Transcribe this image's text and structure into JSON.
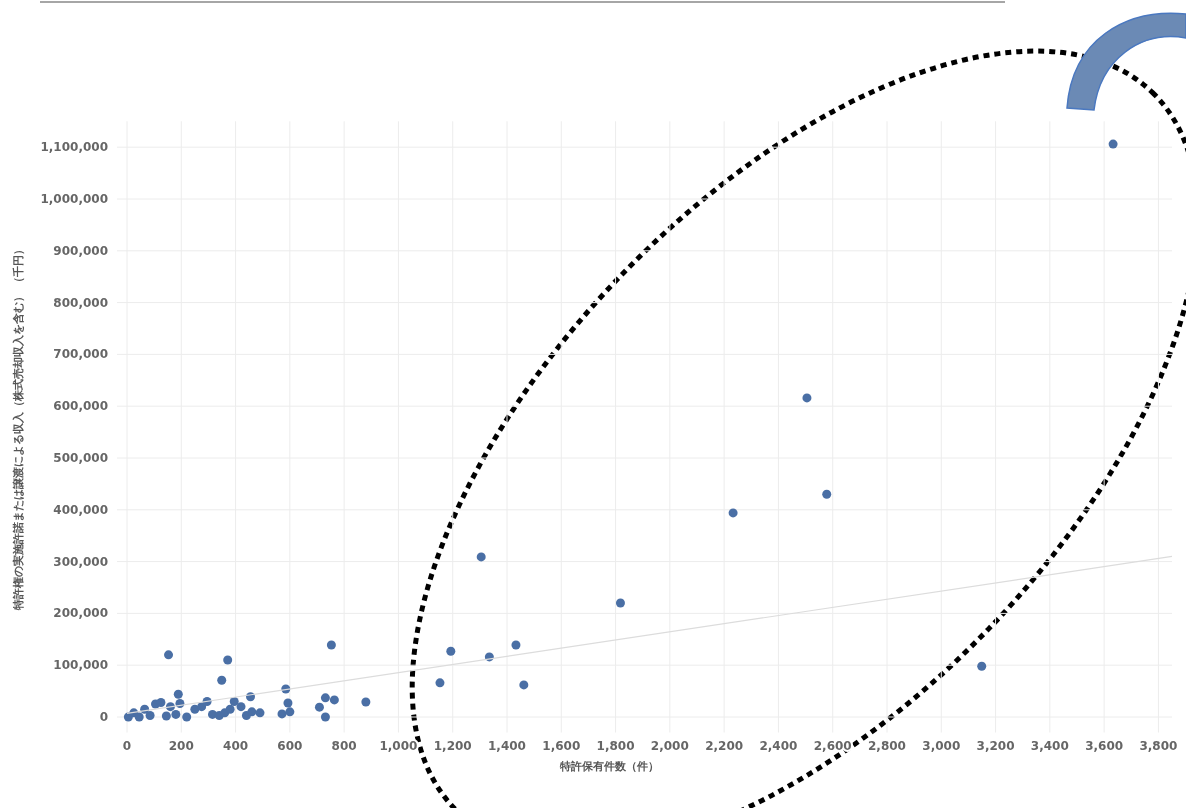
{
  "chart_data": {
    "type": "scatter",
    "xlabel": "特許保有件数（件）",
    "ylabel": "特許権の実施許諾または譲渡による収入（株式売却収入を含む） （千円）",
    "xlim": [
      0,
      3850
    ],
    "ylim": [
      -30000,
      1150000
    ],
    "xticks": [
      0,
      200,
      400,
      600,
      800,
      {
        "value": 1000,
        "label": "1,000"
      },
      {
        "value": 1200,
        "label": "1,200"
      },
      {
        "value": 1400,
        "label": "1,400"
      },
      {
        "value": 1600,
        "label": "1,600"
      },
      {
        "value": 1800,
        "label": "1,800"
      },
      {
        "value": 2000,
        "label": "2,000"
      },
      {
        "value": 2200,
        "label": "2,200"
      },
      {
        "value": 2400,
        "label": "2,400"
      },
      {
        "value": 2600,
        "label": "2,600"
      },
      {
        "value": 2800,
        "label": "2,800"
      },
      {
        "value": 3000,
        "label": "3,000"
      },
      {
        "value": 3200,
        "label": "3,200"
      },
      {
        "value": 3400,
        "label": "3,400"
      },
      {
        "value": 3600,
        "label": "3,600"
      },
      {
        "value": 3800,
        "label": "3,800"
      }
    ],
    "yticks": [
      0,
      {
        "value": 100000,
        "label": "100,000"
      },
      {
        "value": 200000,
        "label": "200,000"
      },
      {
        "value": 300000,
        "label": "300,000"
      },
      {
        "value": 400000,
        "label": "400,000"
      },
      {
        "value": 500000,
        "label": "500,000"
      },
      {
        "value": 600000,
        "label": "600,000"
      },
      {
        "value": 700000,
        "label": "700,000"
      },
      {
        "value": 800000,
        "label": "800,000"
      },
      {
        "value": 900000,
        "label": "900,000"
      },
      {
        "value": 1000000,
        "label": "1,000,000"
      },
      {
        "value": 1100000,
        "label": "1,100,000"
      }
    ],
    "grid": true,
    "marker": "circle",
    "series": [
      {
        "color": "#4a6fa5",
        "x": [
          5,
          25,
          45,
          65,
          85,
          105,
          125,
          145,
          160,
          180,
          195,
          220,
          250,
          275,
          295,
          315,
          340,
          360,
          380,
          395,
          420,
          440,
          460,
          490,
          153,
          189,
          349,
          371,
          455,
          571,
          585,
          593,
          600,
          709,
          731,
          731,
          753,
          764,
          880,
          1153,
          1193,
          1305,
          1335,
          1433,
          1462,
          1818,
          2233,
          2505,
          2578,
          3149,
          3633
        ],
        "values": [
          0,
          8000,
          0,
          15000,
          3000,
          25000,
          28000,
          2000,
          20000,
          5000,
          26000,
          0,
          15000,
          20000,
          30000,
          5000,
          3000,
          8000,
          15000,
          30000,
          20000,
          3000,
          10000,
          8000,
          120000,
          44000,
          71000,
          110000,
          39000,
          6000,
          54000,
          27000,
          10000,
          19000,
          37000,
          0,
          139000,
          33000,
          29000,
          66000,
          127000,
          309000,
          116000,
          139000,
          62000,
          220000,
          394000,
          616000,
          430000,
          98000,
          1106000
        ]
      },
      {
        "type": "line",
        "color": "#dcdcdc",
        "marker": "none",
        "x": [
          0,
          3850
        ],
        "values": [
          7000,
          310000
        ]
      }
    ]
  }
}
